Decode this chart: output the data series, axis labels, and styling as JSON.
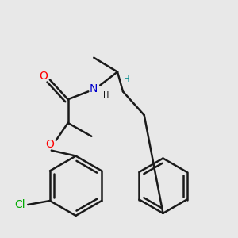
{
  "background_color": "#e8e8e8",
  "bond_color": "#1a1a1a",
  "bond_width": 1.8,
  "figsize": [
    3.0,
    3.0
  ],
  "dpi": 100,
  "atom_colors": {
    "O": "#ff0000",
    "N": "#0000cc",
    "Cl": "#00aa00",
    "H_chiral": "#008b8b",
    "H_N": "#000000",
    "C": "#000000"
  },
  "font_size": 9,
  "font_size_H": 7
}
